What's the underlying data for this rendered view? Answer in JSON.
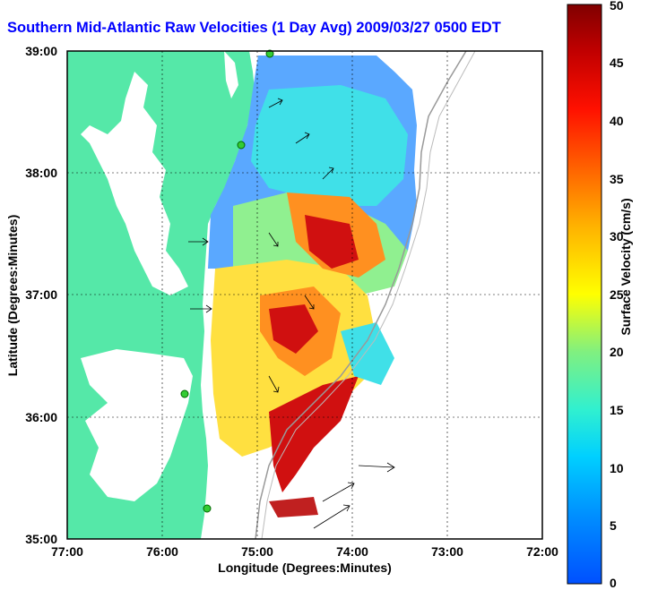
{
  "title": "Southern Mid-Atlantic Raw Velocities (1 Day Avg) 2009/03/27 0500 EDT",
  "axes": {
    "xlabel": "Longitude (Degrees:Minutes)",
    "ylabel": "Latitude (Degrees:Minutes)",
    "xticks": [
      "77:00",
      "76:00",
      "75:00",
      "74:00",
      "73:00",
      "72:00"
    ],
    "yticks": [
      "39:00",
      "38:00",
      "37:00",
      "36:00",
      "35:00"
    ]
  },
  "colorbar": {
    "label": "Surface Velocity (cm/s)",
    "ticks": [
      "50",
      "45",
      "40",
      "35",
      "30",
      "25",
      "20",
      "15",
      "10",
      "5",
      "0"
    ],
    "range": [
      0,
      50
    ]
  },
  "colors": {
    "land": "#55e8a8",
    "ocean": "#ffffff",
    "title": "#0000ff",
    "station": "#33cc33"
  },
  "map": {
    "lon_range": [
      -77,
      -72
    ],
    "lat_range": [
      35,
      39
    ],
    "stations": 5,
    "grid": true
  }
}
